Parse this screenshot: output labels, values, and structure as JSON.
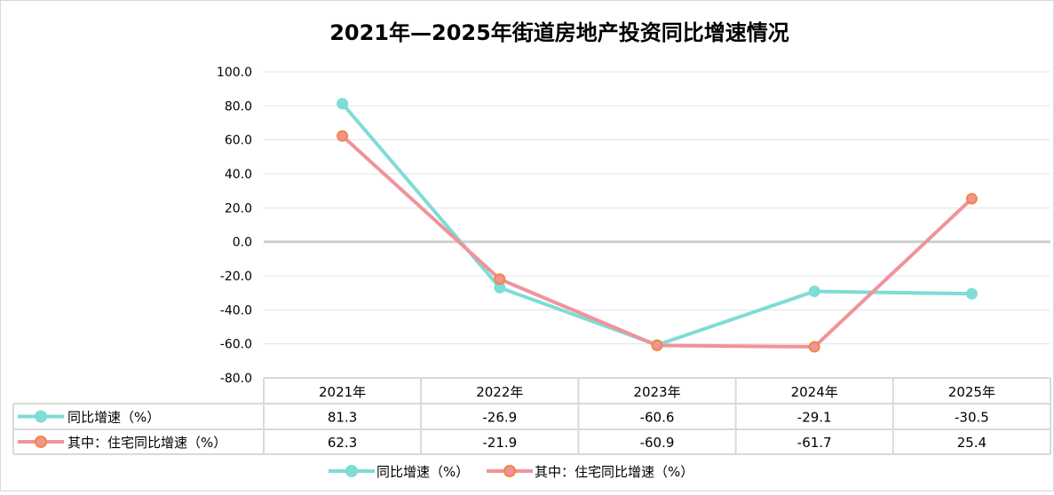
{
  "chart_data": {
    "type": "line",
    "title": "2021年—2025年街道房地产投资同比增速情况",
    "categories": [
      "2021年",
      "2022年",
      "2023年",
      "2024年",
      "2025年"
    ],
    "ylim": [
      -80,
      100
    ],
    "yticks": [
      "100.0",
      "80.0",
      "60.0",
      "40.0",
      "20.0",
      "0.0",
      "-20.0",
      "-40.0",
      "-60.0",
      "-80.0"
    ],
    "ytick_values": [
      100,
      80,
      60,
      40,
      20,
      0,
      -20,
      -40,
      -60,
      -80
    ],
    "grid": true,
    "legend": "bottom",
    "series": [
      {
        "name": "同比增速（%）",
        "values": [
          81.3,
          -26.9,
          -60.6,
          -29.1,
          -30.5
        ],
        "labels": [
          "81.3",
          "-26.9",
          "-60.6",
          "-29.1",
          "-30.5"
        ],
        "color": "#7fdcd6",
        "marker_stroke": "#7fdcd6"
      },
      {
        "name": "其中：住宅同比增速（%）",
        "values": [
          62.3,
          -21.9,
          -60.9,
          -61.7,
          25.4
        ],
        "labels": [
          "62.3",
          "-21.9",
          "-60.9",
          "-61.7",
          "25.4"
        ],
        "color": "#f0939b",
        "marker_stroke": "#f0883c"
      }
    ]
  }
}
